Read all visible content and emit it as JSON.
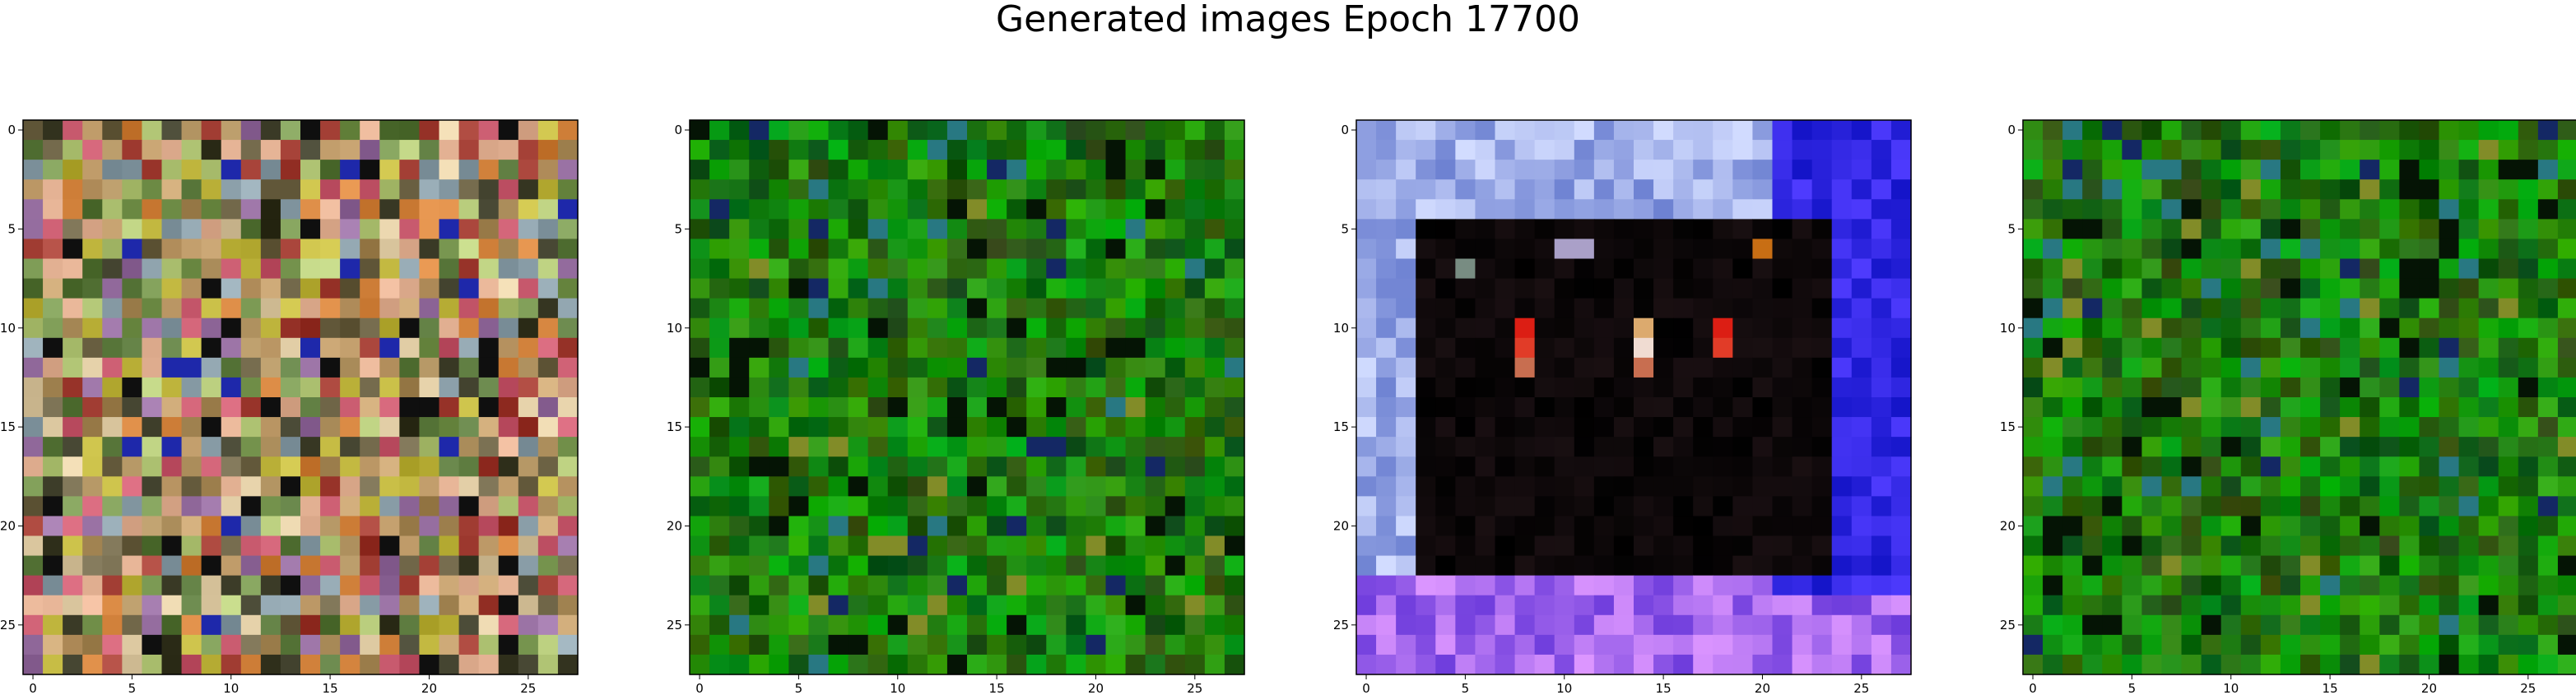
{
  "figure": {
    "title": "Generated images Epoch 17700"
  },
  "panels": [
    {
      "name": "generated-image-1",
      "palette": "colorful-noise",
      "x_ticks": [
        "0",
        "5",
        "10",
        "15",
        "20",
        "25"
      ],
      "y_ticks": [
        "0",
        "5",
        "10",
        "15",
        "20",
        "25"
      ]
    },
    {
      "name": "generated-image-2",
      "palette": "green-texture",
      "x_ticks": [
        "0",
        "5",
        "10",
        "15",
        "20",
        "25"
      ],
      "y_ticks": [
        "0",
        "5",
        "10",
        "15",
        "20",
        "25"
      ]
    },
    {
      "name": "generated-image-3",
      "palette": "blue-frame-dark-center",
      "x_ticks": [
        "0",
        "5",
        "10",
        "15",
        "20",
        "25"
      ],
      "y_ticks": [
        "0",
        "5",
        "10",
        "15",
        "20",
        "25"
      ]
    },
    {
      "name": "generated-image-4",
      "palette": "green-texture",
      "x_ticks": [
        "0",
        "5",
        "10",
        "15",
        "20",
        "25"
      ],
      "y_ticks": [
        "0",
        "5",
        "10",
        "15",
        "20",
        "25"
      ]
    }
  ],
  "image": {
    "grid_size": 28
  }
}
